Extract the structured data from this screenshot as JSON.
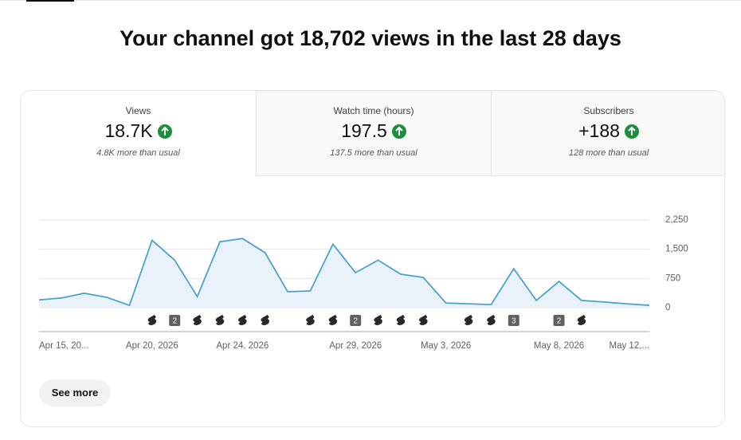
{
  "header": {
    "title": "Your channel got 18,702 views in the last 28 days"
  },
  "metrics": [
    {
      "label": "Views",
      "value": "18.7K",
      "note": "4.8K more than usual"
    },
    {
      "label": "Watch time (hours)",
      "value": "197.5",
      "note": "137.5 more than usual"
    },
    {
      "label": "Subscribers",
      "value": "+188",
      "note": "128 more than usual"
    }
  ],
  "chart_data": {
    "type": "area",
    "categories": [
      "Apr 15, 20...",
      null,
      null,
      null,
      null,
      "Apr 20, 2026",
      null,
      null,
      null,
      "Apr 24, 2026",
      null,
      null,
      null,
      null,
      "Apr 29, 2026",
      null,
      null,
      null,
      "May 3, 2026",
      null,
      null,
      null,
      null,
      "May 8, 2026",
      null,
      null,
      null,
      "May 12,..."
    ],
    "values": [
      200,
      250,
      370,
      265,
      60,
      1730,
      1220,
      285,
      1690,
      1775,
      1410,
      410,
      430,
      1630,
      900,
      1220,
      860,
      775,
      120,
      100,
      80,
      1000,
      185,
      675,
      185,
      145,
      100,
      60
    ],
    "uploads": [
      null,
      null,
      null,
      null,
      null,
      1,
      2,
      1,
      1,
      1,
      1,
      null,
      1,
      1,
      2,
      1,
      1,
      1,
      null,
      1,
      1,
      3,
      null,
      2,
      1,
      null,
      null,
      null
    ],
    "ylim": [
      0,
      2250
    ],
    "yticks": [
      0,
      750,
      {
        "value": 1500,
        "label": "1,500"
      },
      {
        "value": 2250,
        "label": "2,250"
      }
    ],
    "color": "#4aa3cc",
    "grid": true
  },
  "button": {
    "label": "See more"
  }
}
